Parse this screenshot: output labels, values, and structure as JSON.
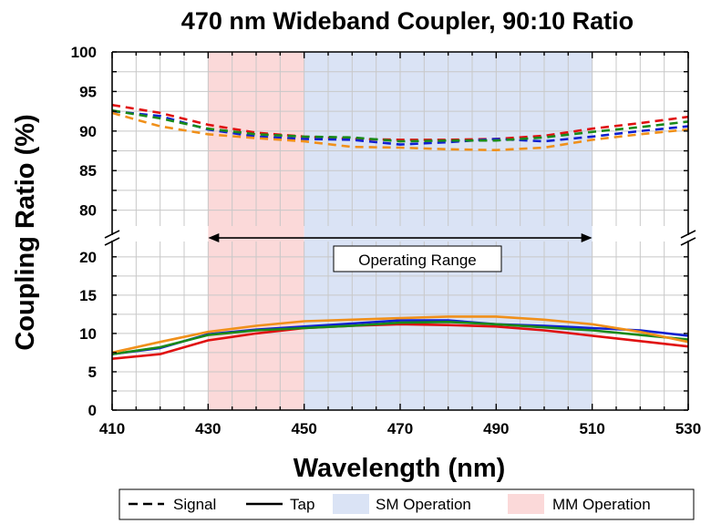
{
  "chart_data": {
    "type": "line",
    "title": "470 nm Wideband Coupler, 90:10 Ratio",
    "xlabel": "Wavelength (nm)",
    "ylabel": "Coupling Ratio (%)",
    "xlim": [
      410,
      530
    ],
    "x_ticks": [
      "410",
      "430",
      "450",
      "470",
      "490",
      "510",
      "530"
    ],
    "y_axis_break": true,
    "ylim_lower": [
      0,
      22
    ],
    "ylim_upper": [
      78,
      100
    ],
    "y_ticks_lower": [
      "0",
      "5",
      "10",
      "15",
      "20"
    ],
    "y_ticks_upper": [
      "80",
      "85",
      "90",
      "95",
      "100"
    ],
    "grid": true,
    "legend_position": "bottom",
    "legend": {
      "signal": "Signal",
      "tap": "Tap",
      "sm": "SM Operation",
      "mm": "MM Operation"
    },
    "regions": [
      {
        "key": "mm",
        "x": [
          430,
          450
        ],
        "color": "#fbd9d9"
      },
      {
        "key": "sm",
        "x": [
          450,
          510
        ],
        "color": "#dae3f5"
      }
    ],
    "annotation": {
      "text": "Operating Range",
      "x_range": [
        430,
        510
      ],
      "arrow_y": 76.5,
      "label_y": 19.8
    },
    "x": [
      410,
      420,
      430,
      440,
      450,
      460,
      470,
      480,
      490,
      500,
      510,
      520,
      530
    ],
    "series": [
      {
        "role": "signal",
        "color": "#e01010",
        "values": [
          93.3,
          92.3,
          90.8,
          89.8,
          89.3,
          89.0,
          88.9,
          88.9,
          89.0,
          89.4,
          90.3,
          91.0,
          91.8
        ]
      },
      {
        "role": "signal",
        "color": "#1020d0",
        "values": [
          92.5,
          91.9,
          90.2,
          89.3,
          89.0,
          88.9,
          88.3,
          88.6,
          89.0,
          88.7,
          89.3,
          90.0,
          90.6
        ]
      },
      {
        "role": "signal",
        "color": "#1a8a1a",
        "values": [
          92.6,
          91.6,
          90.3,
          89.6,
          89.3,
          89.2,
          88.7,
          88.8,
          88.8,
          89.2,
          89.9,
          90.5,
          91.2
        ]
      },
      {
        "role": "signal",
        "color": "#f0901a",
        "values": [
          92.3,
          90.6,
          89.6,
          89.1,
          88.7,
          88.0,
          87.9,
          87.7,
          87.6,
          87.9,
          88.9,
          89.6,
          90.2
        ]
      },
      {
        "role": "tap",
        "color": "#e01010",
        "values": [
          6.7,
          7.3,
          9.1,
          10.0,
          10.7,
          11.0,
          11.2,
          11.1,
          10.9,
          10.4,
          9.7,
          9.0,
          8.3
        ]
      },
      {
        "role": "tap",
        "color": "#1020d0",
        "values": [
          7.3,
          8.1,
          9.9,
          10.5,
          10.9,
          11.3,
          11.7,
          11.7,
          11.2,
          11.0,
          10.7,
          10.4,
          9.7
        ]
      },
      {
        "role": "tap",
        "color": "#1a8a1a",
        "values": [
          7.3,
          8.2,
          9.8,
          10.4,
          10.7,
          11.0,
          11.4,
          11.5,
          11.2,
          10.8,
          10.4,
          9.8,
          9.2
        ]
      },
      {
        "role": "tap",
        "color": "#f0901a",
        "values": [
          7.5,
          8.9,
          10.2,
          11.0,
          11.6,
          11.8,
          12.0,
          12.2,
          12.2,
          11.8,
          11.2,
          10.2,
          8.9
        ]
      }
    ]
  }
}
